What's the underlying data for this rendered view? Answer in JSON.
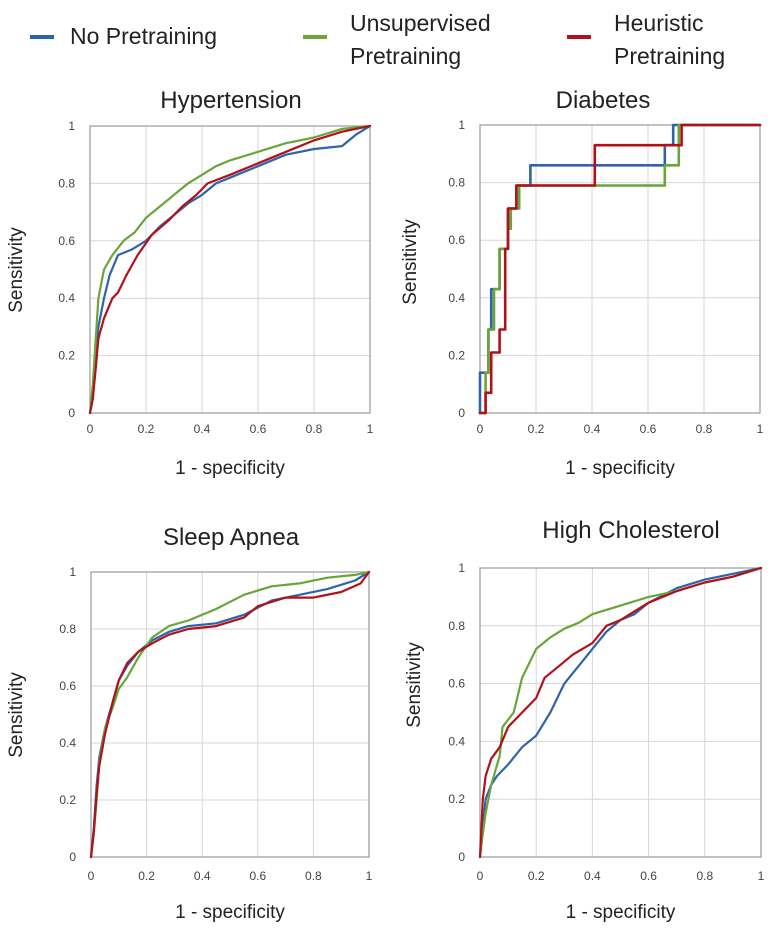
{
  "colors": {
    "no_pretraining": "#2F64A8",
    "unsupervised": "#6AA53A",
    "heuristic": "#B1121A",
    "grid": "#d6d6d6",
    "axis": "#9a9a9a"
  },
  "legend": [
    {
      "key": "no_pretraining",
      "label_lines": [
        "No Pretraining"
      ]
    },
    {
      "key": "unsupervised",
      "label_lines": [
        "Unsupervised",
        "Pretraining"
      ]
    },
    {
      "key": "heuristic",
      "label_lines": [
        "Heuristic",
        "Pretraining"
      ]
    }
  ],
  "chart_data": [
    {
      "type": "line",
      "title": "Hypertension",
      "xlabel": "1 - specificity",
      "ylabel": "Sensitivity",
      "xlim": [
        0,
        1
      ],
      "ylim": [
        0,
        1
      ],
      "xticks": [
        "0",
        "0.2",
        "0.4",
        "0.6",
        "0.8",
        "1"
      ],
      "yticks": [
        "0",
        "0.2",
        "0.4",
        "0.6",
        "0.8",
        "1"
      ],
      "series": [
        {
          "name": "No Pretraining",
          "color_key": "no_pretraining",
          "step": false,
          "points": [
            [
              0,
              0
            ],
            [
              0.01,
              0.05
            ],
            [
              0.02,
              0.2
            ],
            [
              0.03,
              0.3
            ],
            [
              0.05,
              0.4
            ],
            [
              0.07,
              0.48
            ],
            [
              0.1,
              0.55
            ],
            [
              0.15,
              0.57
            ],
            [
              0.2,
              0.6
            ],
            [
              0.25,
              0.65
            ],
            [
              0.3,
              0.69
            ],
            [
              0.35,
              0.73
            ],
            [
              0.4,
              0.76
            ],
            [
              0.45,
              0.8
            ],
            [
              0.5,
              0.82
            ],
            [
              0.6,
              0.86
            ],
            [
              0.7,
              0.9
            ],
            [
              0.8,
              0.92
            ],
            [
              0.9,
              0.93
            ],
            [
              0.95,
              0.97
            ],
            [
              1,
              1
            ]
          ]
        },
        {
          "name": "Unsupervised Pretraining",
          "color_key": "unsupervised",
          "step": false,
          "points": [
            [
              0,
              0
            ],
            [
              0.01,
              0.1
            ],
            [
              0.02,
              0.25
            ],
            [
              0.03,
              0.4
            ],
            [
              0.05,
              0.5
            ],
            [
              0.08,
              0.55
            ],
            [
              0.12,
              0.6
            ],
            [
              0.16,
              0.63
            ],
            [
              0.2,
              0.68
            ],
            [
              0.25,
              0.72
            ],
            [
              0.3,
              0.76
            ],
            [
              0.35,
              0.8
            ],
            [
              0.4,
              0.83
            ],
            [
              0.45,
              0.86
            ],
            [
              0.5,
              0.88
            ],
            [
              0.6,
              0.91
            ],
            [
              0.7,
              0.94
            ],
            [
              0.8,
              0.96
            ],
            [
              0.9,
              0.99
            ],
            [
              1,
              1
            ]
          ]
        },
        {
          "name": "Heuristic Pretraining",
          "color_key": "heuristic",
          "step": false,
          "points": [
            [
              0,
              0
            ],
            [
              0.01,
              0.05
            ],
            [
              0.02,
              0.15
            ],
            [
              0.03,
              0.26
            ],
            [
              0.05,
              0.33
            ],
            [
              0.08,
              0.4
            ],
            [
              0.1,
              0.42
            ],
            [
              0.13,
              0.48
            ],
            [
              0.17,
              0.55
            ],
            [
              0.22,
              0.62
            ],
            [
              0.28,
              0.67
            ],
            [
              0.33,
              0.72
            ],
            [
              0.38,
              0.76
            ],
            [
              0.42,
              0.8
            ],
            [
              0.5,
              0.83
            ],
            [
              0.6,
              0.87
            ],
            [
              0.7,
              0.91
            ],
            [
              0.8,
              0.95
            ],
            [
              0.9,
              0.98
            ],
            [
              1,
              1
            ]
          ]
        }
      ]
    },
    {
      "type": "line",
      "title": "Diabetes",
      "xlabel": "1 - specificity",
      "ylabel": "Sensitivity",
      "xlim": [
        0,
        1
      ],
      "ylim": [
        0,
        1
      ],
      "xticks": [
        "0",
        "0.2",
        "0.4",
        "0.6",
        "0.8",
        "1"
      ],
      "yticks": [
        "0",
        "0.2",
        "0.4",
        "0.6",
        "0.8",
        "1"
      ],
      "series": [
        {
          "name": "No Pretraining",
          "color_key": "no_pretraining",
          "step": true,
          "points": [
            [
              0,
              0
            ],
            [
              0,
              0.14
            ],
            [
              0.03,
              0.14
            ],
            [
              0.03,
              0.29
            ],
            [
              0.04,
              0.29
            ],
            [
              0.04,
              0.43
            ],
            [
              0.07,
              0.43
            ],
            [
              0.07,
              0.57
            ],
            [
              0.1,
              0.57
            ],
            [
              0.1,
              0.71
            ],
            [
              0.13,
              0.71
            ],
            [
              0.13,
              0.79
            ],
            [
              0.18,
              0.79
            ],
            [
              0.18,
              0.86
            ],
            [
              0.66,
              0.86
            ],
            [
              0.66,
              0.93
            ],
            [
              0.69,
              0.93
            ],
            [
              0.69,
              1
            ],
            [
              1,
              1
            ]
          ]
        },
        {
          "name": "Unsupervised Pretraining",
          "color_key": "unsupervised",
          "step": true,
          "points": [
            [
              0,
              0
            ],
            [
              0.02,
              0
            ],
            [
              0.02,
              0.14
            ],
            [
              0.03,
              0.14
            ],
            [
              0.03,
              0.29
            ],
            [
              0.05,
              0.29
            ],
            [
              0.05,
              0.43
            ],
            [
              0.07,
              0.43
            ],
            [
              0.07,
              0.57
            ],
            [
              0.1,
              0.57
            ],
            [
              0.1,
              0.64
            ],
            [
              0.11,
              0.64
            ],
            [
              0.11,
              0.71
            ],
            [
              0.14,
              0.71
            ],
            [
              0.14,
              0.79
            ],
            [
              0.66,
              0.79
            ],
            [
              0.66,
              0.86
            ],
            [
              0.71,
              0.86
            ],
            [
              0.71,
              1
            ],
            [
              1,
              1
            ]
          ]
        },
        {
          "name": "Heuristic Pretraining",
          "color_key": "heuristic",
          "step": true,
          "points": [
            [
              0,
              0
            ],
            [
              0.02,
              0
            ],
            [
              0.02,
              0.07
            ],
            [
              0.04,
              0.07
            ],
            [
              0.04,
              0.21
            ],
            [
              0.07,
              0.21
            ],
            [
              0.07,
              0.29
            ],
            [
              0.09,
              0.29
            ],
            [
              0.09,
              0.57
            ],
            [
              0.1,
              0.57
            ],
            [
              0.1,
              0.71
            ],
            [
              0.13,
              0.71
            ],
            [
              0.13,
              0.79
            ],
            [
              0.41,
              0.79
            ],
            [
              0.41,
              0.93
            ],
            [
              0.72,
              0.93
            ],
            [
              0.72,
              1
            ],
            [
              1,
              1
            ]
          ]
        }
      ]
    },
    {
      "type": "line",
      "title": "Sleep Apnea",
      "xlabel": "1 - specificity",
      "ylabel": "Sensitivity",
      "xlim": [
        0,
        1
      ],
      "ylim": [
        0,
        1
      ],
      "xticks": [
        "0",
        "0.2",
        "0.4",
        "0.6",
        "0.8",
        "1"
      ],
      "yticks": [
        "0",
        "0.2",
        "0.4",
        "0.6",
        "0.8",
        "1"
      ],
      "series": [
        {
          "name": "No Pretraining",
          "color_key": "no_pretraining",
          "step": false,
          "points": [
            [
              0,
              0
            ],
            [
              0.01,
              0.1
            ],
            [
              0.02,
              0.25
            ],
            [
              0.03,
              0.35
            ],
            [
              0.05,
              0.45
            ],
            [
              0.08,
              0.55
            ],
            [
              0.1,
              0.62
            ],
            [
              0.13,
              0.67
            ],
            [
              0.17,
              0.72
            ],
            [
              0.22,
              0.76
            ],
            [
              0.28,
              0.79
            ],
            [
              0.35,
              0.81
            ],
            [
              0.45,
              0.82
            ],
            [
              0.55,
              0.85
            ],
            [
              0.65,
              0.9
            ],
            [
              0.75,
              0.92
            ],
            [
              0.85,
              0.94
            ],
            [
              0.95,
              0.97
            ],
            [
              1,
              1
            ]
          ]
        },
        {
          "name": "Unsupervised Pretraining",
          "color_key": "unsupervised",
          "step": false,
          "points": [
            [
              0,
              0
            ],
            [
              0.01,
              0.08
            ],
            [
              0.02,
              0.2
            ],
            [
              0.03,
              0.33
            ],
            [
              0.05,
              0.45
            ],
            [
              0.08,
              0.53
            ],
            [
              0.1,
              0.59
            ],
            [
              0.13,
              0.63
            ],
            [
              0.17,
              0.7
            ],
            [
              0.22,
              0.77
            ],
            [
              0.28,
              0.81
            ],
            [
              0.35,
              0.83
            ],
            [
              0.45,
              0.87
            ],
            [
              0.55,
              0.92
            ],
            [
              0.65,
              0.95
            ],
            [
              0.75,
              0.96
            ],
            [
              0.85,
              0.98
            ],
            [
              0.95,
              0.99
            ],
            [
              1,
              1
            ]
          ]
        },
        {
          "name": "Heuristic Pretraining",
          "color_key": "heuristic",
          "step": false,
          "points": [
            [
              0,
              0
            ],
            [
              0.01,
              0.09
            ],
            [
              0.02,
              0.22
            ],
            [
              0.03,
              0.32
            ],
            [
              0.05,
              0.43
            ],
            [
              0.08,
              0.55
            ],
            [
              0.1,
              0.62
            ],
            [
              0.13,
              0.68
            ],
            [
              0.17,
              0.72
            ],
            [
              0.22,
              0.75
            ],
            [
              0.28,
              0.78
            ],
            [
              0.35,
              0.8
            ],
            [
              0.45,
              0.81
            ],
            [
              0.55,
              0.84
            ],
            [
              0.6,
              0.88
            ],
            [
              0.7,
              0.91
            ],
            [
              0.8,
              0.91
            ],
            [
              0.9,
              0.93
            ],
            [
              0.97,
              0.96
            ],
            [
              1,
              1
            ]
          ]
        }
      ]
    },
    {
      "type": "line",
      "title": "High Cholesterol",
      "xlabel": "1 - specificity",
      "ylabel": "Sensitivity",
      "xlim": [
        0,
        1
      ],
      "ylim": [
        0,
        1
      ],
      "xticks": [
        "0",
        "0.2",
        "0.4",
        "0.6",
        "0.8",
        "1"
      ],
      "yticks": [
        "0",
        "0.2",
        "0.4",
        "0.6",
        "0.8",
        "1"
      ],
      "series": [
        {
          "name": "No Pretraining",
          "color_key": "no_pretraining",
          "step": false,
          "points": [
            [
              0,
              0
            ],
            [
              0.01,
              0.1
            ],
            [
              0.02,
              0.2
            ],
            [
              0.04,
              0.25
            ],
            [
              0.06,
              0.28
            ],
            [
              0.1,
              0.32
            ],
            [
              0.15,
              0.38
            ],
            [
              0.2,
              0.42
            ],
            [
              0.25,
              0.5
            ],
            [
              0.3,
              0.6
            ],
            [
              0.35,
              0.66
            ],
            [
              0.4,
              0.72
            ],
            [
              0.45,
              0.78
            ],
            [
              0.5,
              0.82
            ],
            [
              0.55,
              0.84
            ],
            [
              0.6,
              0.88
            ],
            [
              0.7,
              0.93
            ],
            [
              0.8,
              0.96
            ],
            [
              0.9,
              0.98
            ],
            [
              1,
              1
            ]
          ]
        },
        {
          "name": "Unsupervised Pretraining",
          "color_key": "unsupervised",
          "step": false,
          "points": [
            [
              0,
              0
            ],
            [
              0.01,
              0.08
            ],
            [
              0.02,
              0.15
            ],
            [
              0.04,
              0.25
            ],
            [
              0.07,
              0.35
            ],
            [
              0.08,
              0.45
            ],
            [
              0.12,
              0.5
            ],
            [
              0.15,
              0.62
            ],
            [
              0.2,
              0.72
            ],
            [
              0.25,
              0.76
            ],
            [
              0.3,
              0.79
            ],
            [
              0.35,
              0.81
            ],
            [
              0.4,
              0.84
            ],
            [
              0.5,
              0.87
            ],
            [
              0.6,
              0.9
            ],
            [
              0.7,
              0.92
            ],
            [
              0.8,
              0.95
            ],
            [
              0.9,
              0.97
            ],
            [
              1,
              1
            ]
          ]
        },
        {
          "name": "Heuristic Pretraining",
          "color_key": "heuristic",
          "step": false,
          "points": [
            [
              0,
              0
            ],
            [
              0.01,
              0.2
            ],
            [
              0.02,
              0.28
            ],
            [
              0.04,
              0.34
            ],
            [
              0.07,
              0.38
            ],
            [
              0.1,
              0.45
            ],
            [
              0.15,
              0.5
            ],
            [
              0.2,
              0.55
            ],
            [
              0.23,
              0.62
            ],
            [
              0.28,
              0.66
            ],
            [
              0.33,
              0.7
            ],
            [
              0.4,
              0.74
            ],
            [
              0.45,
              0.8
            ],
            [
              0.5,
              0.82
            ],
            [
              0.6,
              0.88
            ],
            [
              0.7,
              0.92
            ],
            [
              0.8,
              0.95
            ],
            [
              0.9,
              0.97
            ],
            [
              1,
              1
            ]
          ]
        }
      ]
    }
  ]
}
